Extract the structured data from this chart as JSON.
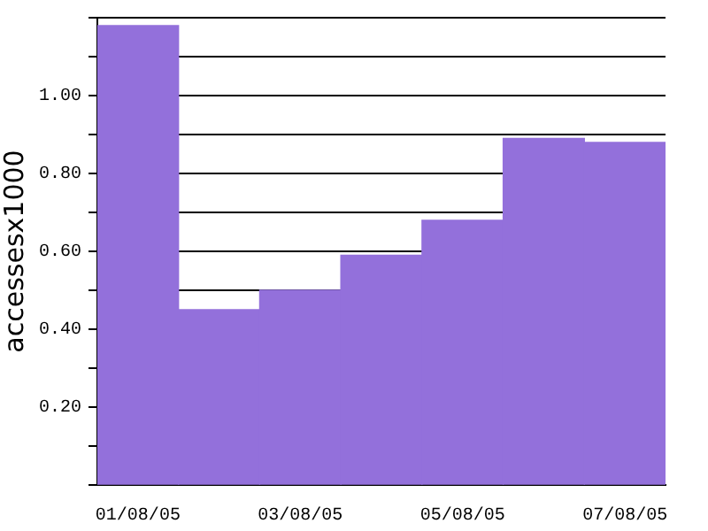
{
  "chart_data": {
    "type": "bar",
    "ylabel": "accessesx1000",
    "categories": [
      "01/08/05",
      null,
      "03/08/05",
      null,
      "05/08/05",
      null,
      "07/08/05"
    ],
    "values": [
      1.18,
      0.45,
      0.5,
      0.59,
      0.68,
      0.89,
      0.88
    ],
    "color": "#9370db",
    "ylim": [
      0,
      1.2
    ],
    "yticks": [
      {
        "value": 0,
        "label": null
      },
      {
        "value": 0.1,
        "label": null
      },
      {
        "value": 0.2,
        "label": "0.20"
      },
      {
        "value": 0.3,
        "label": null
      },
      {
        "value": 0.4,
        "label": "0.40"
      },
      {
        "value": 0.5,
        "label": null
      },
      {
        "value": 0.6,
        "label": "0.60"
      },
      {
        "value": 0.7,
        "label": null
      },
      {
        "value": 0.8,
        "label": "0.80"
      },
      {
        "value": 0.9,
        "label": null
      },
      {
        "value": 1.0,
        "label": "1.00"
      },
      {
        "value": 1.1,
        "label": null
      },
      {
        "value": 1.2,
        "label": null
      }
    ],
    "grid": "y"
  }
}
